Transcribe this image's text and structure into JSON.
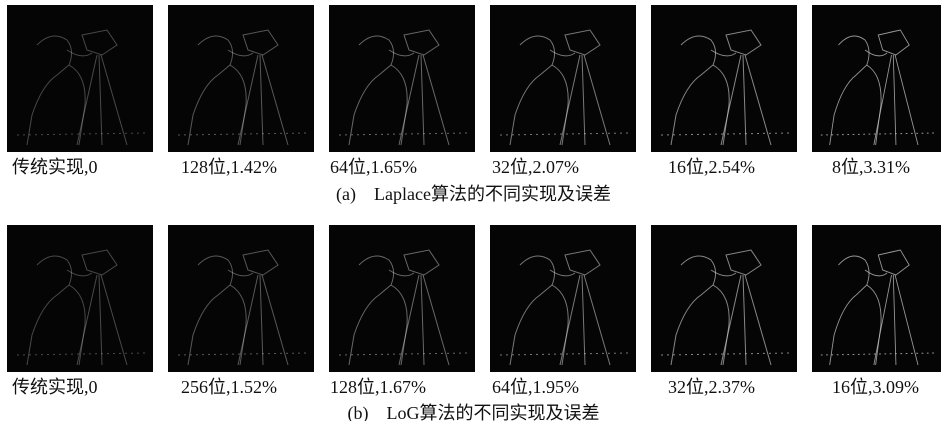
{
  "figure": {
    "rows": [
      {
        "panels": [
          {
            "label": "传统实现,0"
          },
          {
            "label": "128位,1.42%"
          },
          {
            "label": "64位,1.65%"
          },
          {
            "label": "32位,2.07%"
          },
          {
            "label": "16位,2.54%"
          },
          {
            "label": "8位,3.31%"
          }
        ],
        "caption_tag": "(a)",
        "caption": "Laplace算法的不同实现及误差"
      },
      {
        "panels": [
          {
            "label": "传统实现,0"
          },
          {
            "label": "256位,1.52%"
          },
          {
            "label": "128位,1.67%"
          },
          {
            "label": "64位,1.95%"
          },
          {
            "label": "32位,2.37%"
          },
          {
            "label": "16位,3.09%"
          }
        ],
        "caption_tag": "(b)",
        "caption": "LoG算法的不同实现及误差"
      }
    ]
  }
}
